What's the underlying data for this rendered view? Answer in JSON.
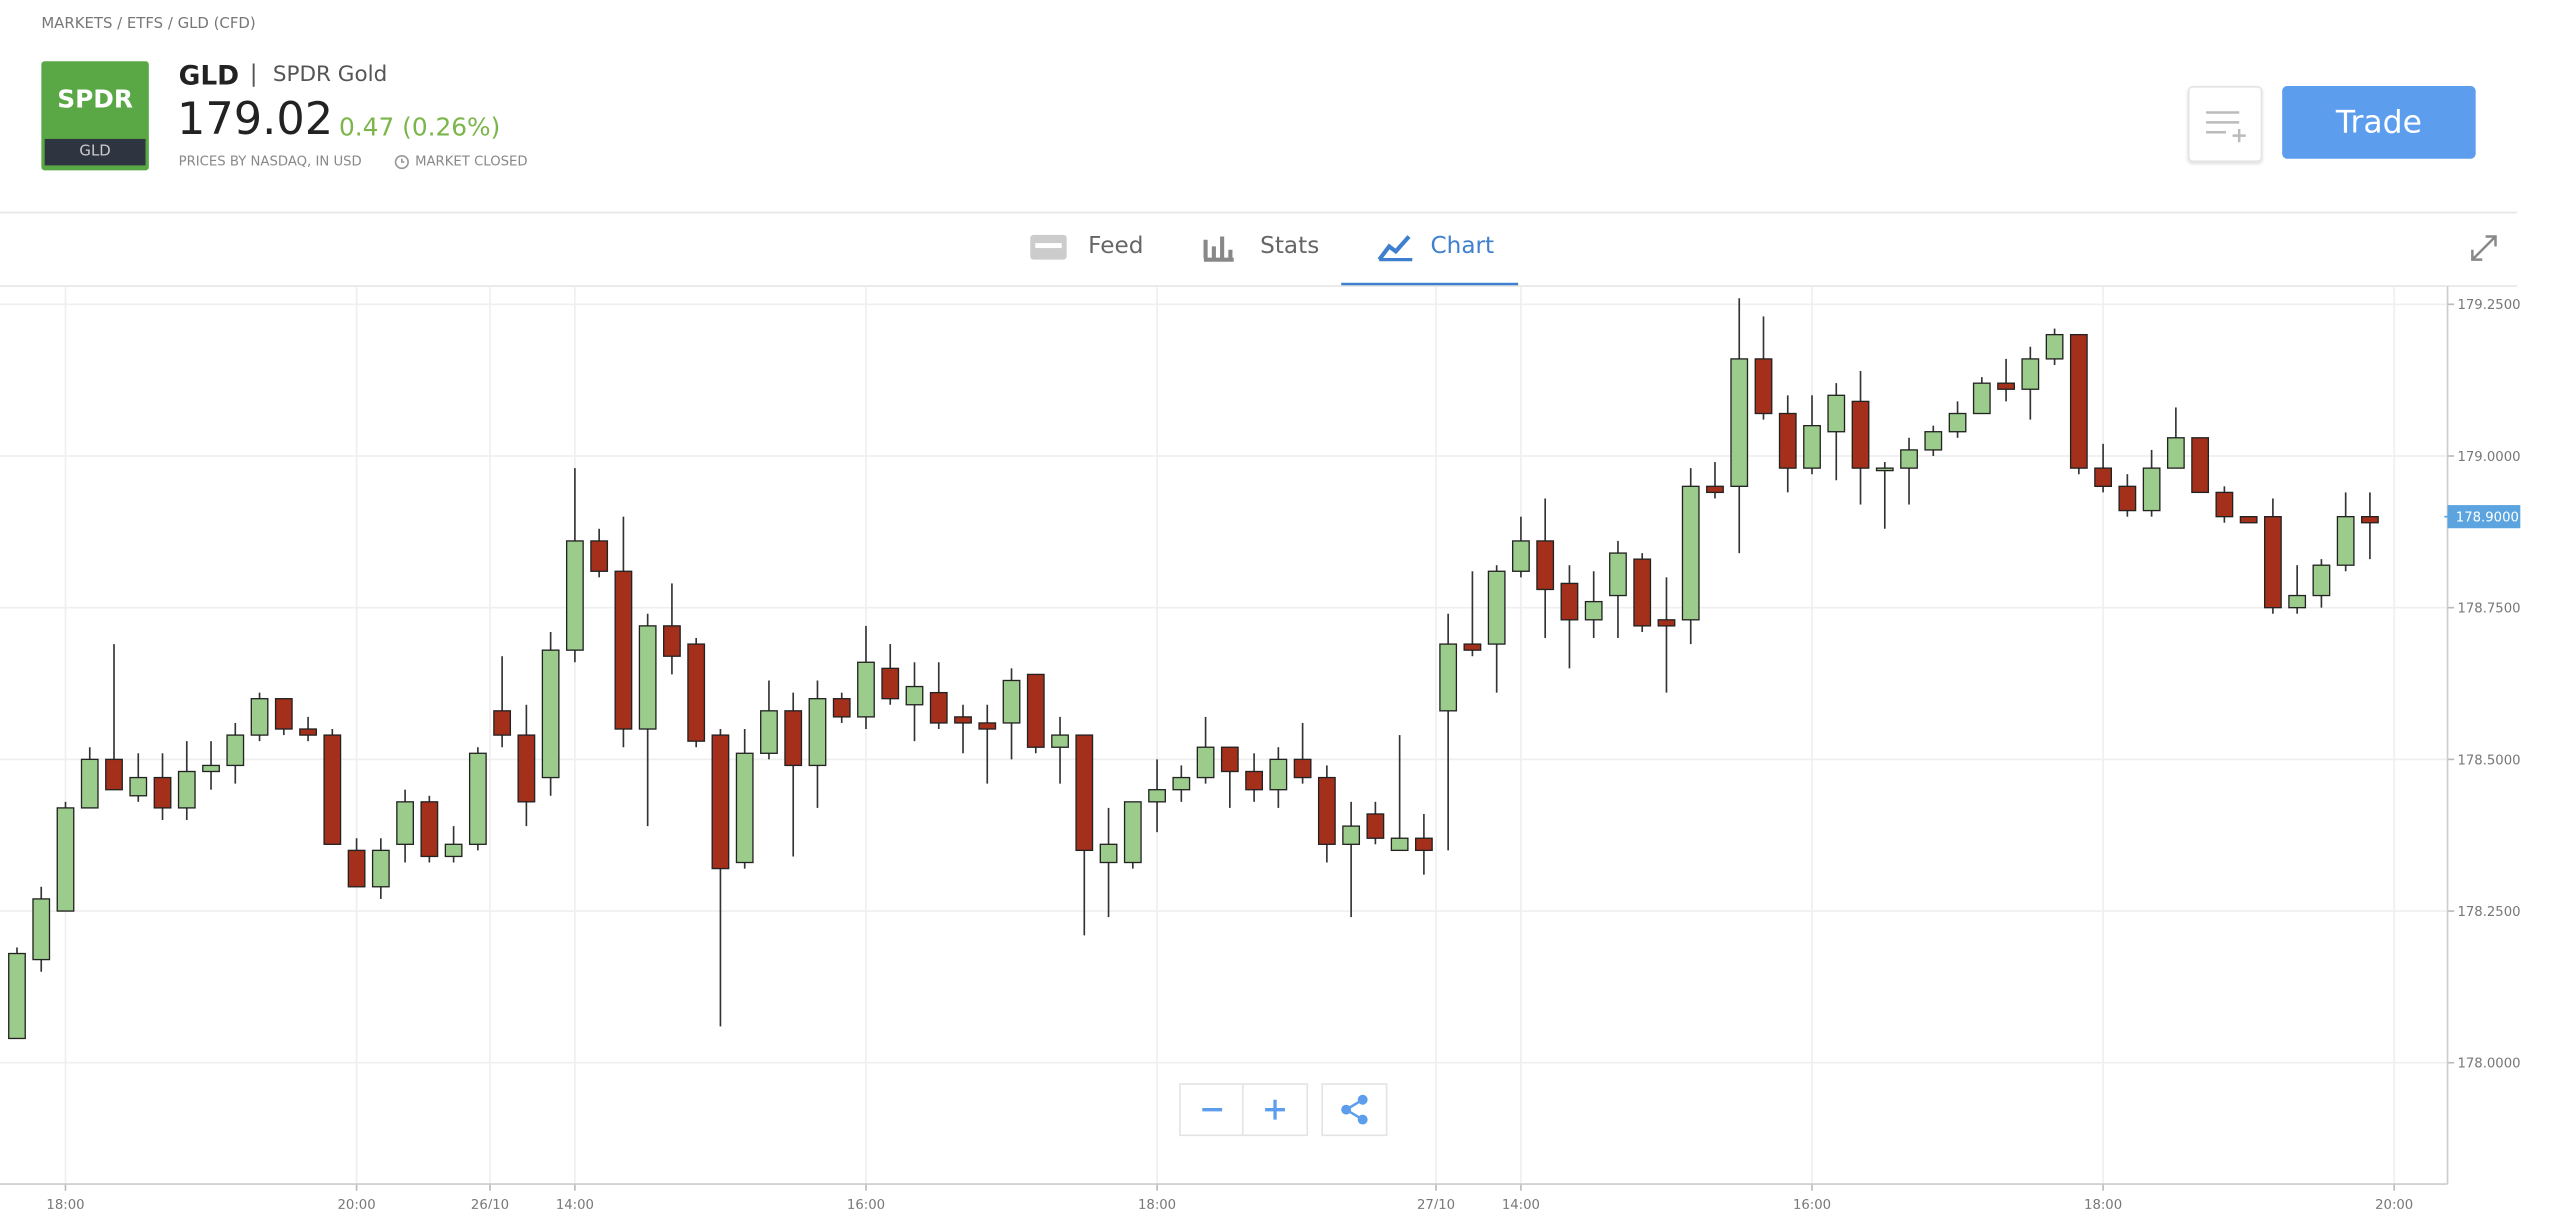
{
  "header": {
    "breadcrumb": "MARKETS / ETFS / GLD (CFD)",
    "logo_top": "SPDR",
    "logo_bottom": "GLD",
    "symbol": "GLD",
    "separator": "|",
    "name": "SPDR Gold",
    "price": "179.02",
    "change": "0.47 (0.26%)",
    "source": "PRICES BY NASDAQ, IN USD",
    "status": "MARKET CLOSED",
    "trade_button": "Trade"
  },
  "tabs": [
    "Feed",
    "Stats",
    "Chart"
  ],
  "chart_data": {
    "type": "candlestick",
    "grid": true,
    "up_color": "#9ccc8c",
    "down_color": "#a4301b",
    "ylim": [
      177.8,
      179.28
    ],
    "yticks": [
      {
        "value": 178.0,
        "label": "178.0000"
      },
      {
        "value": 178.25,
        "label": "178.2500"
      },
      {
        "value": 178.5,
        "label": "178.5000"
      },
      {
        "value": 178.75,
        "label": "178.7500"
      },
      {
        "value": 179.0,
        "label": "179.0000"
      },
      {
        "value": 179.25,
        "label": "179.2500"
      }
    ],
    "xlim": [
      -0.7,
      100.2
    ],
    "xticks": [
      {
        "value": 2,
        "label": "18:00"
      },
      {
        "value": 14,
        "label": "20:00"
      },
      {
        "value": 19.5,
        "label": "26/10"
      },
      {
        "value": 23,
        "label": "14:00"
      },
      {
        "value": 35,
        "label": "16:00"
      },
      {
        "value": 47,
        "label": "18:00"
      },
      {
        "value": 58.5,
        "label": "27/10"
      },
      {
        "value": 62,
        "label": "14:00"
      },
      {
        "value": 74,
        "label": "16:00"
      },
      {
        "value": 86,
        "label": "18:00"
      },
      {
        "value": 98,
        "label": "20:00"
      }
    ],
    "last_price": {
      "value": 178.9,
      "label": "178.9000"
    },
    "open": [
      178.04,
      178.17,
      178.25,
      178.42,
      178.5,
      178.44,
      178.47,
      178.42,
      178.48,
      178.49,
      178.54,
      178.6,
      178.55,
      178.54,
      178.35,
      178.29,
      178.36,
      178.43,
      178.34,
      178.36,
      178.58,
      178.54,
      178.47,
      178.68,
      178.86,
      178.81,
      178.55,
      178.72,
      178.69,
      178.54,
      178.33,
      178.51,
      178.58,
      178.49,
      178.6,
      178.57,
      178.65,
      178.59,
      178.61,
      178.57,
      178.56,
      178.56,
      178.64,
      178.52,
      178.54,
      178.33,
      178.33,
      178.43,
      178.45,
      178.47,
      178.52,
      178.48,
      178.45,
      178.5,
      178.47,
      178.36,
      178.41,
      178.35,
      178.37,
      178.58,
      178.69,
      178.69,
      178.81,
      178.86,
      178.79,
      178.73,
      178.77,
      178.83,
      178.73,
      178.73,
      178.95,
      178.95,
      179.16,
      179.07,
      178.98,
      179.04,
      179.09,
      178.98,
      178.98,
      179.01,
      179.04,
      179.07,
      179.12,
      179.11,
      179.16,
      179.2,
      178.98,
      178.95,
      178.91,
      178.98,
      179.03,
      178.94,
      178.9,
      178.9,
      178.75,
      178.77,
      178.82,
      178.9
    ],
    "high": [
      178.19,
      178.29,
      178.43,
      178.52,
      178.69,
      178.51,
      178.51,
      178.53,
      178.53,
      178.56,
      178.61,
      178.6,
      178.57,
      178.55,
      178.37,
      178.37,
      178.45,
      178.44,
      178.39,
      178.52,
      178.67,
      178.59,
      178.71,
      178.98,
      178.88,
      178.9,
      178.74,
      178.79,
      178.7,
      178.55,
      178.55,
      178.63,
      178.61,
      178.63,
      178.61,
      178.72,
      178.69,
      178.66,
      178.66,
      178.59,
      178.59,
      178.65,
      178.64,
      178.57,
      178.54,
      178.42,
      178.43,
      178.5,
      178.49,
      178.57,
      178.52,
      178.51,
      178.52,
      178.56,
      178.49,
      178.43,
      178.43,
      178.54,
      178.41,
      178.74,
      178.81,
      178.82,
      178.9,
      178.93,
      178.82,
      178.81,
      178.86,
      178.84,
      178.8,
      178.98,
      178.99,
      179.26,
      179.23,
      179.1,
      179.1,
      179.12,
      179.14,
      178.99,
      179.03,
      179.05,
      179.09,
      179.13,
      179.16,
      179.18,
      179.21,
      179.2,
      179.02,
      178.97,
      179.01,
      179.08,
      179.03,
      178.95,
      178.9,
      178.93,
      178.82,
      178.83,
      178.94,
      178.94
    ],
    "low": [
      178.04,
      178.15,
      178.25,
      178.42,
      178.45,
      178.43,
      178.4,
      178.4,
      178.45,
      178.46,
      178.53,
      178.54,
      178.53,
      178.36,
      178.29,
      178.27,
      178.33,
      178.33,
      178.33,
      178.35,
      178.52,
      178.39,
      178.44,
      178.66,
      178.8,
      178.52,
      178.39,
      178.64,
      178.52,
      178.06,
      178.32,
      178.5,
      178.34,
      178.42,
      178.56,
      178.55,
      178.59,
      178.53,
      178.55,
      178.51,
      178.46,
      178.5,
      178.51,
      178.46,
      178.21,
      178.24,
      178.32,
      178.38,
      178.43,
      178.46,
      178.42,
      178.43,
      178.42,
      178.46,
      178.33,
      178.24,
      178.36,
      178.35,
      178.31,
      178.35,
      178.67,
      178.61,
      178.8,
      178.7,
      178.65,
      178.7,
      178.7,
      178.71,
      178.61,
      178.69,
      178.93,
      178.84,
      179.06,
      178.94,
      178.97,
      178.96,
      178.92,
      178.88,
      178.92,
      179.0,
      179.03,
      179.07,
      179.09,
      179.06,
      179.15,
      178.97,
      178.94,
      178.9,
      178.9,
      178.98,
      178.94,
      178.89,
      178.89,
      178.74,
      178.74,
      178.75,
      178.81,
      178.83
    ],
    "close": [
      178.18,
      178.27,
      178.42,
      178.5,
      178.45,
      178.47,
      178.42,
      178.48,
      178.49,
      178.54,
      178.6,
      178.55,
      178.54,
      178.36,
      178.29,
      178.35,
      178.43,
      178.34,
      178.36,
      178.51,
      178.54,
      178.43,
      178.68,
      178.86,
      178.81,
      178.55,
      178.72,
      178.67,
      178.53,
      178.32,
      178.51,
      178.58,
      178.49,
      178.6,
      178.57,
      178.66,
      178.6,
      178.62,
      178.56,
      178.56,
      178.55,
      178.63,
      178.52,
      178.54,
      178.35,
      178.36,
      178.43,
      178.45,
      178.47,
      178.52,
      178.48,
      178.45,
      178.5,
      178.47,
      178.36,
      178.39,
      178.37,
      178.37,
      178.35,
      178.69,
      178.68,
      178.81,
      178.86,
      178.78,
      178.73,
      178.76,
      178.84,
      178.72,
      178.72,
      178.95,
      178.94,
      179.16,
      179.07,
      178.98,
      179.05,
      179.1,
      178.98,
      178.98,
      179.01,
      179.04,
      179.07,
      179.12,
      179.11,
      179.16,
      179.2,
      178.98,
      178.95,
      178.91,
      178.98,
      179.03,
      178.94,
      178.9,
      178.89,
      178.75,
      178.77,
      178.82,
      178.9,
      178.89
    ]
  }
}
